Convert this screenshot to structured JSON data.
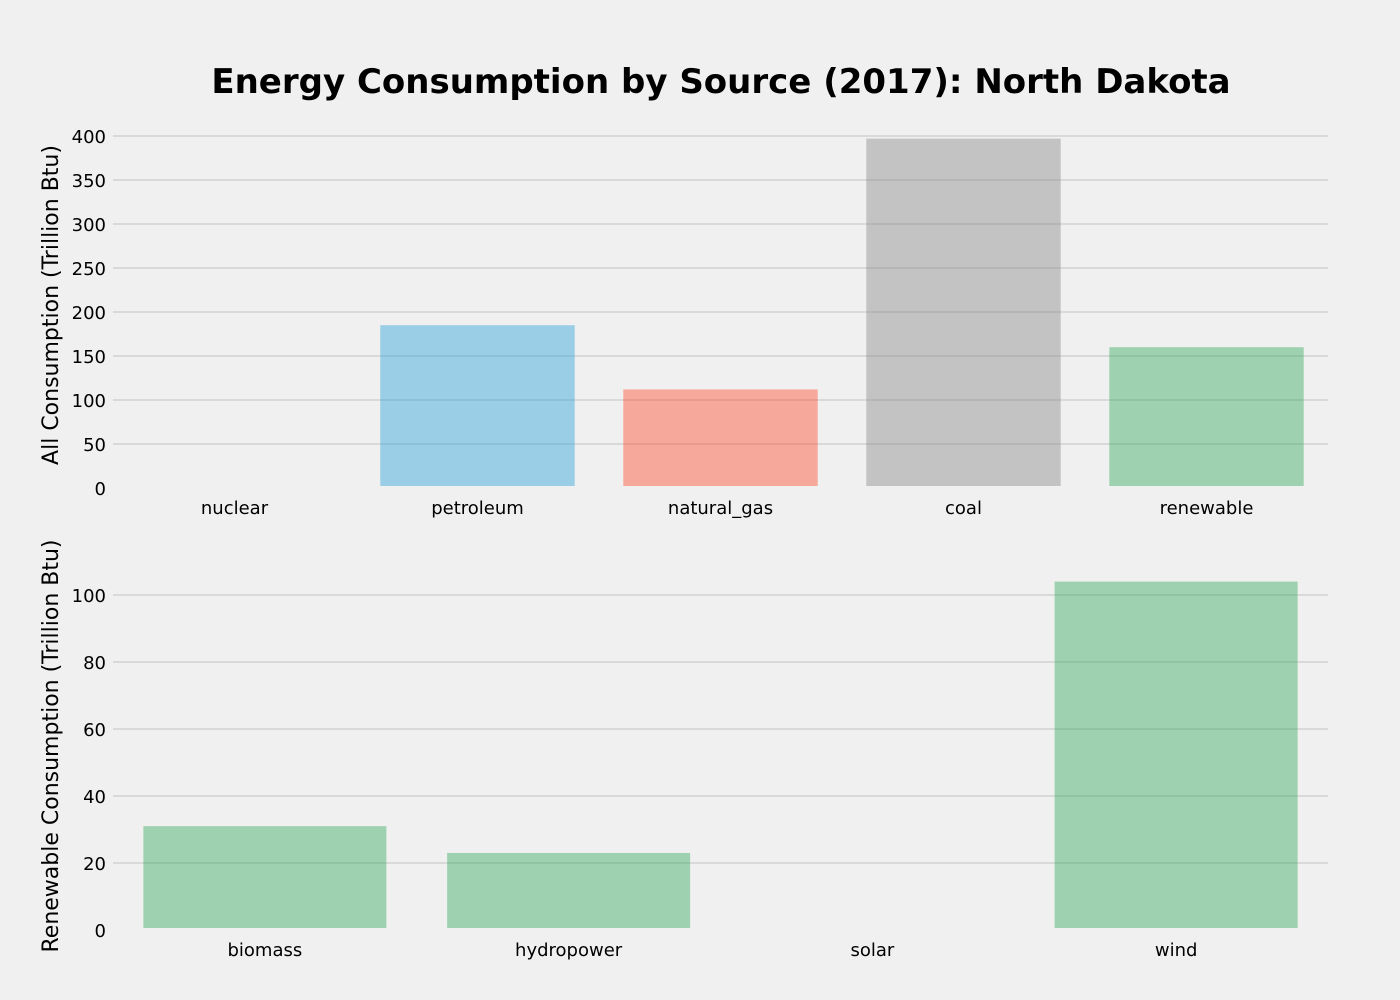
{
  "figure_title": "Energy Consumption by Source (2017): North Dakota",
  "chart_data": [
    {
      "type": "bar",
      "title": "Energy Consumption by Source (2017): North Dakota",
      "xlabel": "",
      "ylabel": "All Consumption (Trillion Btu)",
      "categories": [
        "nuclear",
        "petroleum",
        "natural_gas",
        "coal",
        "renewable"
      ],
      "values": [
        0,
        185,
        112,
        397,
        160
      ],
      "colors": [
        "#30a2da",
        "#30a2da",
        "#e5ae38",
        "#8b8b8b",
        "#6d904f"
      ],
      "bar_colors": [
        "#30a2da",
        "#30a2da",
        "#fc4f30",
        "#8b8b8b",
        "#3aab5f"
      ],
      "yticks": [
        0,
        50,
        100,
        150,
        200,
        250,
        300,
        350,
        400
      ],
      "ylim": [
        0,
        400
      ],
      "grid": "horizontal"
    },
    {
      "type": "bar",
      "xlabel": "",
      "ylabel": "Renewable Consumption (Trillion Btu)",
      "categories": [
        "biomass",
        "hydropower",
        "solar",
        "wind"
      ],
      "values": [
        31,
        23,
        0,
        104
      ],
      "bar_colors": [
        "#3aab5f",
        "#3aab5f",
        "#3aab5f",
        "#3aab5f"
      ],
      "yticks": [
        0,
        20,
        40,
        60,
        80,
        100
      ],
      "ylim": [
        0,
        104
      ],
      "grid": "horizontal"
    }
  ],
  "style": {
    "background": "#f0f0f0",
    "grid_color": "#cbcbcb",
    "bar_opacity": 0.45
  }
}
